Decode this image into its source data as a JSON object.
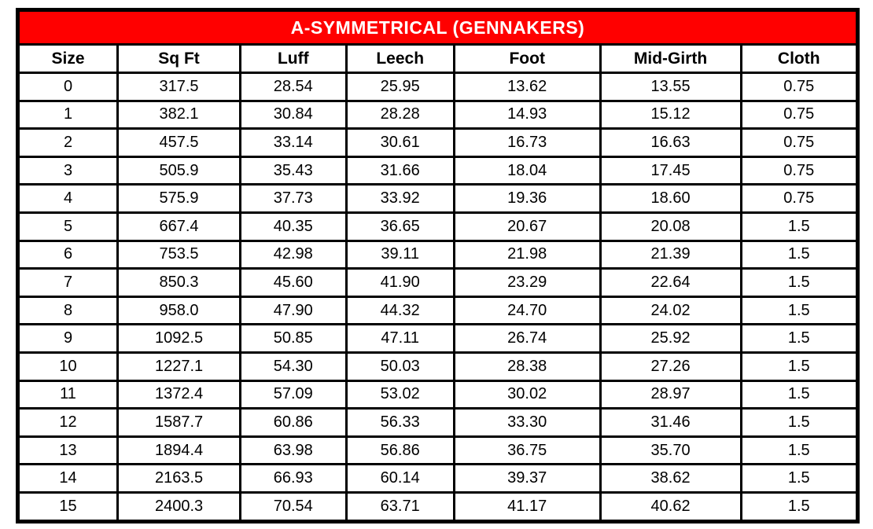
{
  "title": "A-SYMMETRICAL (GENNAKERS)",
  "colors": {
    "title_bg": "#ff0000",
    "title_text": "#ffffff",
    "border": "#000000",
    "cell_bg": "#ffffff"
  },
  "chart_data": {
    "type": "table",
    "title": "A-SYMMETRICAL (GENNAKERS)",
    "columns": [
      "Size",
      "Sq Ft",
      "Luff",
      "Leech",
      "Foot",
      "Mid-Girth",
      "Cloth"
    ],
    "rows": [
      [
        "0",
        "317.5",
        "28.54",
        "25.95",
        "13.62",
        "13.55",
        "0.75"
      ],
      [
        "1",
        "382.1",
        "30.84",
        "28.28",
        "14.93",
        "15.12",
        "0.75"
      ],
      [
        "2",
        "457.5",
        "33.14",
        "30.61",
        "16.73",
        "16.63",
        "0.75"
      ],
      [
        "3",
        "505.9",
        "35.43",
        "31.66",
        "18.04",
        "17.45",
        "0.75"
      ],
      [
        "4",
        "575.9",
        "37.73",
        "33.92",
        "19.36",
        "18.60",
        "0.75"
      ],
      [
        "5",
        "667.4",
        "40.35",
        "36.65",
        "20.67",
        "20.08",
        "1.5"
      ],
      [
        "6",
        "753.5",
        "42.98",
        "39.11",
        "21.98",
        "21.39",
        "1.5"
      ],
      [
        "7",
        "850.3",
        "45.60",
        "41.90",
        "23.29",
        "22.64",
        "1.5"
      ],
      [
        "8",
        "958.0",
        "47.90",
        "44.32",
        "24.70",
        "24.02",
        "1.5"
      ],
      [
        "9",
        "1092.5",
        "50.85",
        "47.11",
        "26.74",
        "25.92",
        "1.5"
      ],
      [
        "10",
        "1227.1",
        "54.30",
        "50.03",
        "28.38",
        "27.26",
        "1.5"
      ],
      [
        "11",
        "1372.4",
        "57.09",
        "53.02",
        "30.02",
        "28.97",
        "1.5"
      ],
      [
        "12",
        "1587.7",
        "60.86",
        "56.33",
        "33.30",
        "31.46",
        "1.5"
      ],
      [
        "13",
        "1894.4",
        "63.98",
        "56.86",
        "36.75",
        "35.70",
        "1.5"
      ],
      [
        "14",
        "2163.5",
        "66.93",
        "60.14",
        "39.37",
        "38.62",
        "1.5"
      ],
      [
        "15",
        "2400.3",
        "70.54",
        "63.71",
        "41.17",
        "40.62",
        "1.5"
      ]
    ]
  }
}
